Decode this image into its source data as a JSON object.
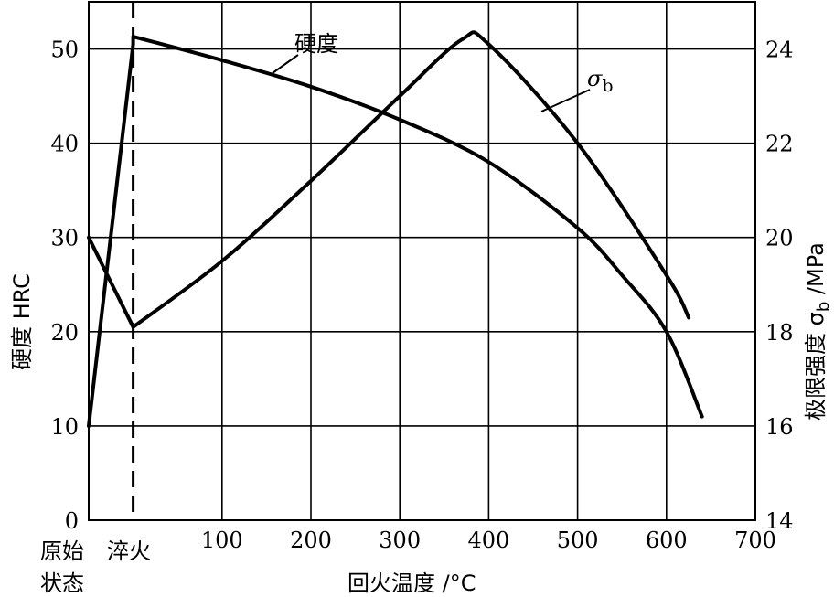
{
  "chart_data": {
    "type": "line",
    "xlabel": "回火温度 /°C",
    "ylabel_left": "硬度 HRC",
    "ylabel_right_prefix": "极限强度 σ",
    "ylabel_right_sub": "b",
    "ylabel_right_suffix": " /MPa",
    "x_ticks": [
      "100",
      "200",
      "300",
      "400",
      "500",
      "600",
      "700"
    ],
    "x_category_labels": [
      "原始",
      "状态",
      "淬火"
    ],
    "xlim": [
      -50,
      700
    ],
    "quench_x": 0,
    "y_left_ticks": [
      "0",
      "10",
      "20",
      "30",
      "40",
      "50"
    ],
    "ylim_left": [
      0,
      55
    ],
    "y_right_ticks": [
      "14",
      "16",
      "18",
      "20",
      "22",
      "24"
    ],
    "ylim_right": [
      14,
      25
    ],
    "grid": true,
    "series": [
      {
        "name": "硬度",
        "axis": "left",
        "x": [
          -50,
          0,
          0,
          100,
          200,
          300,
          400,
          500,
          550,
          600,
          640
        ],
        "y": [
          10,
          50.5,
          51.3,
          48.8,
          46,
          42.5,
          38,
          31,
          26,
          20,
          11
        ],
        "sharp_indices": [
          1,
          2
        ]
      },
      {
        "name_prefix": "σ",
        "name_sub": "b",
        "axis": "right",
        "x": [
          -50,
          0,
          0,
          100,
          200,
          300,
          370,
          400,
          500,
          600,
          625
        ],
        "y": [
          20,
          18.1,
          18.1,
          19.5,
          21.2,
          23,
          24.2,
          24.1,
          22,
          19.2,
          18.3
        ],
        "sharp_indices": [
          1,
          2
        ]
      }
    ],
    "annotations": [
      {
        "text": "硬度",
        "series": 0
      },
      {
        "text_prefix": "σ",
        "text_sub": "b",
        "series": 1
      }
    ]
  }
}
